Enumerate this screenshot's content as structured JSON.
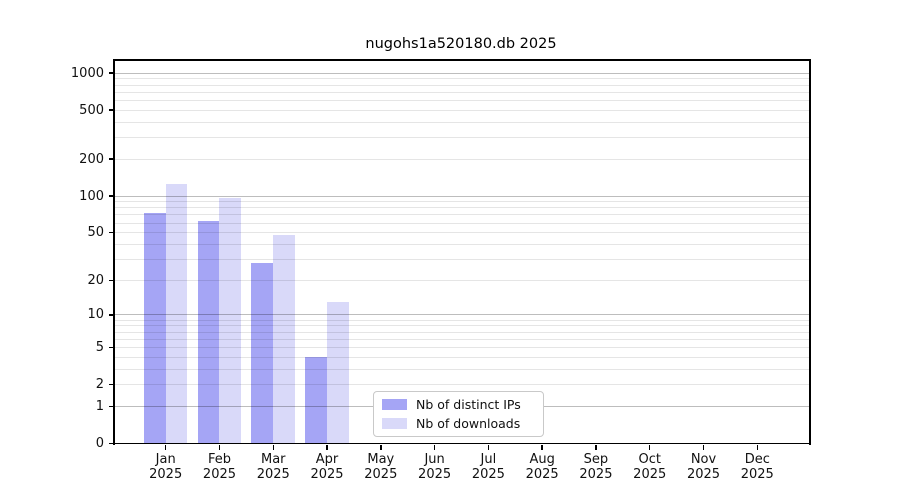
{
  "chart_data": {
    "type": "bar",
    "title": "nugohs1a520180.db 2025",
    "xlabel": "",
    "ylabel": "",
    "categories": [
      "Jan",
      "Feb",
      "Mar",
      "Apr",
      "May",
      "Jun",
      "Jul",
      "Aug",
      "Sep",
      "Oct",
      "Nov",
      "Dec"
    ],
    "year_label": "2025",
    "series": [
      {
        "name": "Nb of distinct IPs",
        "color": "#a5a5f5",
        "values": [
          72,
          62,
          28,
          4,
          0,
          0,
          0,
          0,
          0,
          0,
          0,
          0
        ]
      },
      {
        "name": "Nb of downloads",
        "color": "#d9d9f9",
        "values": [
          125,
          96,
          48,
          13,
          0,
          0,
          0,
          0,
          0,
          0,
          0,
          0
        ]
      }
    ],
    "yscale": "log1p",
    "ylim": [
      0,
      1276
    ],
    "yticks": [
      0,
      1,
      2,
      5,
      10,
      20,
      50,
      100,
      200,
      500,
      1000
    ],
    "grid": {
      "horizontal": true,
      "minor_lines": true,
      "vertical": false
    },
    "legend": {
      "position": "lower center",
      "entries": [
        "Nb of distinct IPs",
        "Nb of downloads"
      ]
    }
  }
}
